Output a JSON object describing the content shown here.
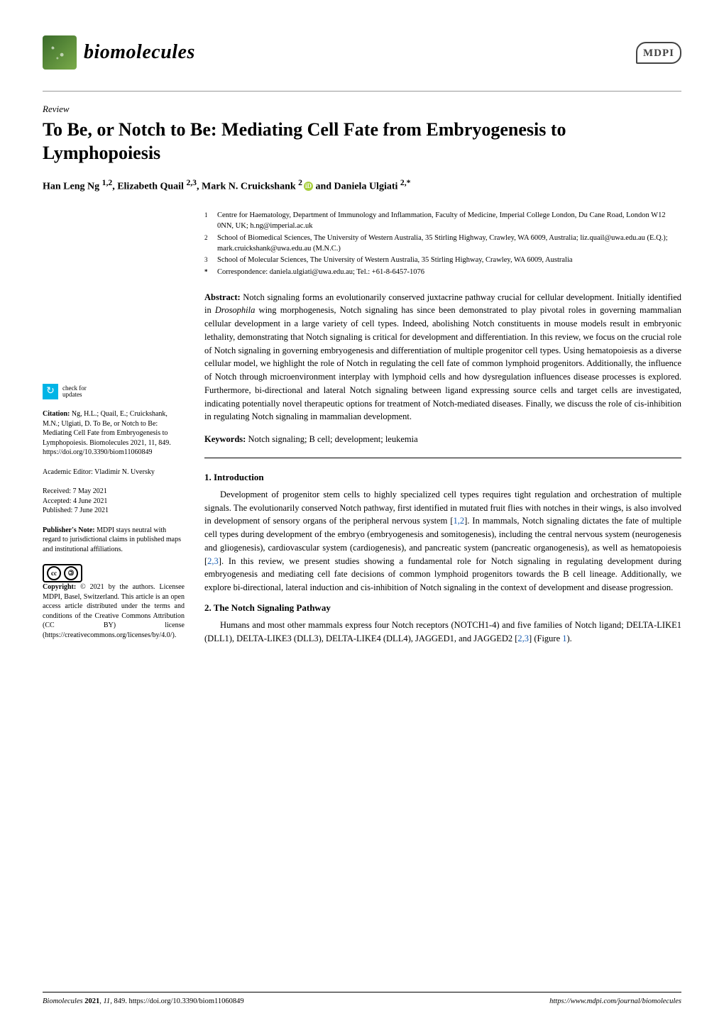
{
  "journal": {
    "name": "biomolecules",
    "publisher_logo": "MDPI"
  },
  "article_type": "Review",
  "title": "To Be, or Notch to Be: Mediating Cell Fate from Embryogenesis to Lymphopoiesis",
  "authors_html": "Han Leng Ng <sup>1,2</sup>, Elizabeth Quail <sup>2,3</sup>, Mark N. Cruickshank <sup>2</sup><span class='orcid'>iD</span> and Daniela Ulgiati <sup>2,*</sup>",
  "affiliations": [
    {
      "sup": "1",
      "text": "Centre for Haematology, Department of Immunology and Inflammation, Faculty of Medicine, Imperial College London, Du Cane Road, London W12 0NN, UK; h.ng@imperial.ac.uk"
    },
    {
      "sup": "2",
      "text": "School of Biomedical Sciences, The University of Western Australia, 35 Stirling Highway, Crawley, WA 6009, Australia; liz.quail@uwa.edu.au (E.Q.); mark.cruickshank@uwa.edu.au (M.N.C.)"
    },
    {
      "sup": "3",
      "text": "School of Molecular Sciences, The University of Western Australia, 35 Stirling Highway, Crawley, WA 6009, Australia"
    },
    {
      "sup": "*",
      "text": "Correspondence: daniela.ulgiati@uwa.edu.au; Tel.: +61-8-6457-1076"
    }
  ],
  "abstract": "Notch signaling forms an evolutionarily conserved juxtacrine pathway crucial for cellular development. Initially identified in Drosophila wing morphogenesis, Notch signaling has since been demonstrated to play pivotal roles in governing mammalian cellular development in a large variety of cell types. Indeed, abolishing Notch constituents in mouse models result in embryonic lethality, demonstrating that Notch signaling is critical for development and differentiation. In this review, we focus on the crucial role of Notch signaling in governing embryogenesis and differentiation of multiple progenitor cell types. Using hematopoiesis as a diverse cellular model, we highlight the role of Notch in regulating the cell fate of common lymphoid progenitors. Additionally, the influence of Notch through microenvironment interplay with lymphoid cells and how dysregulation influences disease processes is explored. Furthermore, bi-directional and lateral Notch signaling between ligand expressing source cells and target cells are investigated, indicating potentially novel therapeutic options for treatment of Notch-mediated diseases. Finally, we discuss the role of cis-inhibition in regulating Notch signaling in mammalian development.",
  "keywords": "Notch signaling; B cell; development; leukemia",
  "sidebar": {
    "check_updates": "check for\nupdates",
    "citation_lead": "Citation:",
    "citation": " Ng, H.L.; Quail, E.; Cruickshank, M.N.; Ulgiati, D. To Be, or Notch to Be: Mediating Cell Fate from Embryogenesis to Lymphopoiesis. Biomolecules 2021, 11, 849. https://doi.org/10.3390/biom11060849",
    "editor_lead": "Academic Editor:",
    "editor": " Vladimir N. Uversky",
    "received": "Received: 7 May 2021",
    "accepted": "Accepted: 4 June 2021",
    "published": "Published: 7 June 2021",
    "pubnote_lead": "Publisher's Note:",
    "pubnote": " MDPI stays neutral with regard to jurisdictional claims in published maps and institutional affiliations.",
    "copyright_lead": "Copyright:",
    "copyright": " © 2021 by the authors. Licensee MDPI, Basel, Switzerland. This article is an open access article distributed under the terms and conditions of the Creative Commons Attribution (CC BY) license (https://creativecommons.org/licenses/by/4.0/)."
  },
  "sections": {
    "s1_head": "1. Introduction",
    "s1_body": "Development of progenitor stem cells to highly specialized cell types requires tight regulation and orchestration of multiple signals. The evolutionarily conserved Notch pathway, first identified in mutated fruit flies with notches in their wings, is also involved in development of sensory organs of the peripheral nervous system [1,2]. In mammals, Notch signaling dictates the fate of multiple cell types during development of the embryo (embryogenesis and somitogenesis), including the central nervous system (neurogenesis and gliogenesis), cardiovascular system (cardiogenesis), and pancreatic system (pancreatic organogenesis), as well as hematopoiesis [2,3]. In this review, we present studies showing a fundamental role for Notch signaling in regulating development during embryogenesis and mediating cell fate decisions of common lymphoid progenitors towards the B cell lineage. Additionally, we explore bi-directional, lateral induction and cis-inhibition of Notch signaling in the context of development and disease progression.",
    "s2_head": "2. The Notch Signaling Pathway",
    "s2_body": "Humans and most other mammals express four Notch receptors (NOTCH1-4) and five families of Notch ligand; DELTA-LIKE1 (DLL1), DELTA-LIKE3 (DLL3), DELTA-LIKE4 (DLL4), JAGGED1, and JAGGED2 [2,3] (Figure 1)."
  },
  "footer": {
    "left_journal_ital": "Biomolecules ",
    "left_rest": "2021, 11, 849. https://doi.org/10.3390/biom11060849",
    "right": "https://www.mdpi.com/journal/biomolecules"
  },
  "colors": {
    "link": "#1a5fb4",
    "check_icon": "#00b4e6",
    "orcid": "#a6ce39"
  }
}
